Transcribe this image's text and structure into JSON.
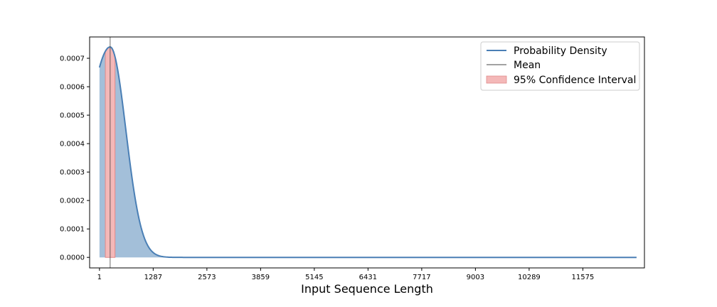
{
  "chart_data": {
    "type": "area",
    "xlabel": "Input Sequence Length",
    "ylabel": "",
    "xlim": [
      -235,
      13050
    ],
    "ylim": [
      -3.7e-05,
      0.000775
    ],
    "x_ticks": [
      1,
      1287,
      2573,
      3859,
      5145,
      6431,
      7717,
      9003,
      10289,
      11575
    ],
    "y_ticks": [
      0.0,
      0.0001,
      0.0002,
      0.0003,
      0.0004,
      0.0005,
      0.0006,
      0.0007
    ],
    "y_tick_labels": [
      "0.0000",
      "0.0001",
      "0.0002",
      "0.0003",
      "0.0004",
      "0.0005",
      "0.0006",
      "0.0007"
    ],
    "distribution": {
      "x_min": 1,
      "x_max": 12861,
      "peak_x": 257,
      "peak_density": 0.00074,
      "left_shape": 800,
      "right_shape": 530
    },
    "mean": 257,
    "confidence_interval": [
      141,
      373
    ],
    "legend": {
      "position": "top-right",
      "entries": [
        "Probability Density",
        "Mean",
        "95% Confidence Interval"
      ]
    },
    "colors": {
      "density_line": "#4a7fb5",
      "density_fill": "#a3bfd9",
      "mean_line": "#444444",
      "ci_fill": "#f4b8b8",
      "ci_edge": "#e08a8a"
    },
    "grid": false
  }
}
